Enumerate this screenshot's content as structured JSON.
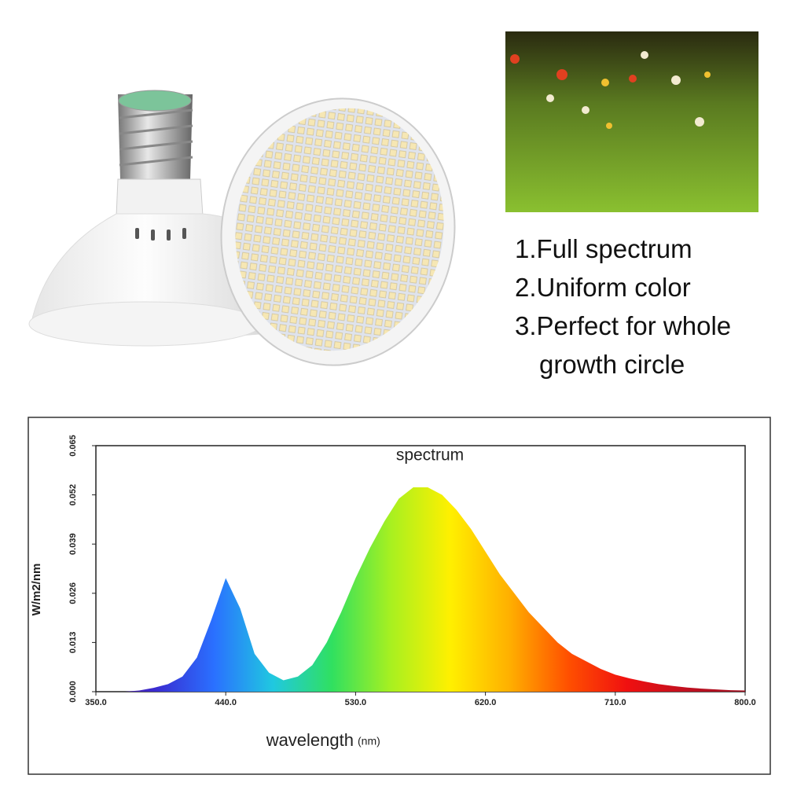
{
  "features": [
    "1.Full spectrum",
    "2.Uniform color",
    "3.Perfect for whole growth circle"
  ],
  "chart_data": {
    "type": "area",
    "title": "spectrum",
    "xlabel": "wavelength",
    "xlabel_unit": "(nm)",
    "ylabel": "W/m2/nm",
    "x": [
      350,
      360,
      370,
      380,
      390,
      400,
      410,
      420,
      430,
      440,
      450,
      460,
      470,
      480,
      490,
      500,
      510,
      520,
      530,
      540,
      550,
      560,
      570,
      580,
      590,
      600,
      610,
      620,
      630,
      640,
      650,
      660,
      670,
      680,
      690,
      700,
      710,
      720,
      730,
      740,
      750,
      760,
      770,
      780,
      790,
      800
    ],
    "values": [
      0,
      0,
      0,
      0.0003,
      0.001,
      0.002,
      0.004,
      0.009,
      0.019,
      0.03,
      0.022,
      0.01,
      0.005,
      0.003,
      0.004,
      0.007,
      0.013,
      0.021,
      0.03,
      0.038,
      0.045,
      0.051,
      0.054,
      0.054,
      0.052,
      0.048,
      0.043,
      0.037,
      0.031,
      0.026,
      0.021,
      0.017,
      0.013,
      0.01,
      0.008,
      0.006,
      0.0045,
      0.0035,
      0.0027,
      0.002,
      0.0015,
      0.0011,
      0.0008,
      0.0006,
      0.0004,
      0.0003
    ],
    "gradient": [
      "#5a1a8a",
      "#3a2bd0",
      "#2a70ff",
      "#20c8e0",
      "#30e060",
      "#a8f020",
      "#fff000",
      "#ffb000",
      "#ff5000",
      "#f01010",
      "#c01020",
      "#a01020"
    ],
    "xlim": [
      350,
      800
    ],
    "ylim": [
      0,
      0.065
    ],
    "xticks": [
      {
        "value": 350,
        "label": "350.0"
      },
      {
        "value": 440,
        "label": "440.0"
      },
      {
        "value": 530,
        "label": "530.0"
      },
      {
        "value": 620,
        "label": "620.0"
      },
      {
        "value": 710,
        "label": "710.0"
      },
      {
        "value": 800,
        "label": "800.0"
      }
    ],
    "yticks": [
      {
        "value": 0,
        "label": "0.000"
      },
      0.013,
      0.026,
      0.039,
      0.052,
      0.065
    ]
  }
}
